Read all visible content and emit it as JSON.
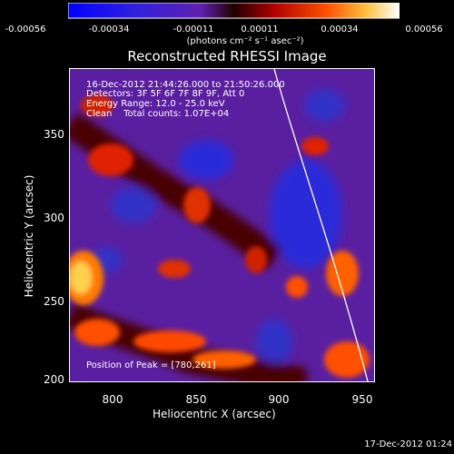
{
  "colorbar": {
    "ticks": [
      "-0.00056",
      "-0.00034",
      "-0.00011",
      "0.00011",
      "0.00034",
      "0.00056"
    ],
    "units": "(photons cm⁻² s⁻¹ asec⁻²)"
  },
  "title": "Reconstructed RHESSI Image",
  "info": {
    "time": "16-Dec-2012 21:44:26.000 to 21:50:26.000",
    "detectors": "Detectors: 3F 5F 6F 7F 8F 9F, Att 0",
    "energy": "Energy Range: 12.0 - 25.0 keV",
    "clean": "Clean    Total counts: 1.07E+04"
  },
  "peak": "Position of Peak = [780,261]",
  "axes": {
    "xlabel": "Heliocentric X (arcsec)",
    "ylabel": "Heliocentric Y (arcsec)",
    "xticks": [
      "800",
      "850",
      "900",
      "950"
    ],
    "yticks": [
      "350",
      "300",
      "250",
      "200"
    ]
  },
  "footer": "17-Dec-2012 01:24"
}
